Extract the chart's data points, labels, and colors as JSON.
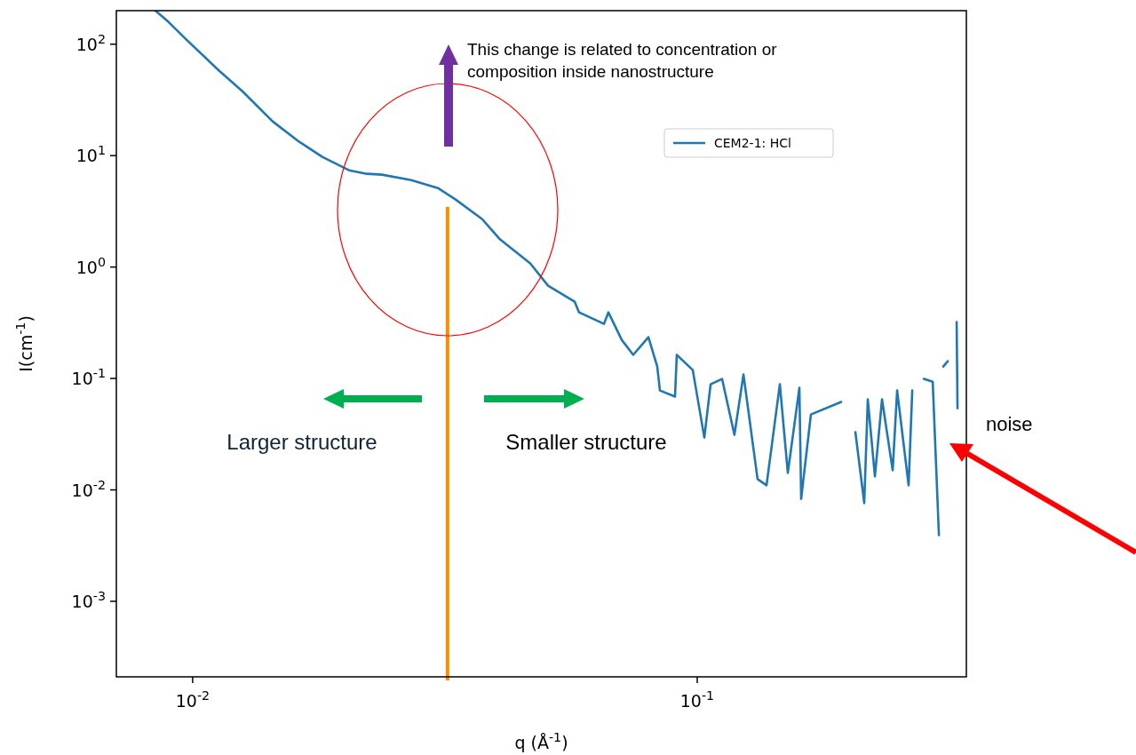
{
  "chart_data": {
    "type": "line",
    "xlabel": "q (Å$^{-1}$)",
    "ylabel": "I(cm$^{-1}$)",
    "log": "xy",
    "xlim": [
      0.00706,
      0.3415
    ],
    "ylim": [
      0.00021,
      200
    ],
    "xticks": [
      {
        "value": 0.01,
        "label": "10$^{-2}$"
      },
      {
        "value": 0.1,
        "label": "10$^{-1}$"
      }
    ],
    "yticks": [
      {
        "value": 0.001,
        "label": "10$^{-3}$"
      },
      {
        "value": 0.01,
        "label": "10$^{-2}$"
      },
      {
        "value": 0.1,
        "label": "10$^{-1}$"
      },
      {
        "value": 1,
        "label": "10$^{0}$"
      },
      {
        "value": 10,
        "label": "10$^{1}$"
      },
      {
        "value": 100,
        "label": "10$^{2}$"
      }
    ],
    "legend": "top right",
    "grid": false,
    "series": [
      {
        "name": "CEM2-1: HCl",
        "color": "#1f77b4",
        "x": [
          0.00844,
          0.00896,
          0.00972,
          0.01129,
          0.01255,
          0.0144,
          0.01627,
          0.01807,
          0.02041,
          0.02214,
          0.02371,
          0.02711,
          0.03062,
          0.0332,
          0.03749,
          0.04067,
          0.04667,
          0.05062,
          0.05715,
          0.05832,
          0.06534,
          0.06667,
          0.07086,
          0.07467,
          0.08004,
          0.08332,
          0.08435,
          0.09036,
          0.09109,
          0.09799,
          0.1033,
          0.1063,
          0.112,
          0.1185,
          0.1235,
          0.1317,
          0.1372,
          0.1458,
          0.1512,
          0.1594,
          0.1607,
          0.168,
          0.1929,
          0.1976,
          0.2049,
          0.2058,
          0.2143,
          0.2178,
          0.225,
          0.2324,
          0.244,
          0.249,
          0.2624,
          0.2668,
          0.2733,
          0.2812,
          0.2929,
          0.3013,
          0.305,
          0.3074,
          0.3137,
          0.3175,
          0.3267,
          0.328
        ],
        "values": [
          200,
          158,
          110,
          57.7,
          37.8,
          20.3,
          13.3,
          9.73,
          7.39,
          6.87,
          6.75,
          6.04,
          5.12,
          4.04,
          2.69,
          1.77,
          1.08,
          0.681,
          0.489,
          0.392,
          0.309,
          0.392,
          0.222,
          0.163,
          0.235,
          0.128,
          0.078,
          0.0687,
          0.163,
          0.119,
          0.0295,
          0.0887,
          0.0991,
          0.0312,
          0.1086,
          0.0125,
          0.011,
          0.0887,
          0.0142,
          0.0824,
          0.0083,
          0.0475,
          0.0615,
          null,
          null,
          0.033,
          0.0076,
          0.065,
          0.0132,
          0.065,
          0.015,
          0.078,
          0.011,
          0.078,
          null,
          0.0991,
          0.0937,
          0.00393,
          null,
          0.128,
          0.143,
          null,
          0.321,
          0.054
        ]
      }
    ],
    "ref_lines": [
      {
        "axis": "x",
        "value": 0.032,
        "color": "#ff8c00"
      }
    ],
    "annotations": [
      "This change is related to concentration or composition inside nanostructure",
      "Larger structure",
      "Smaller structure",
      "noise"
    ]
  }
}
